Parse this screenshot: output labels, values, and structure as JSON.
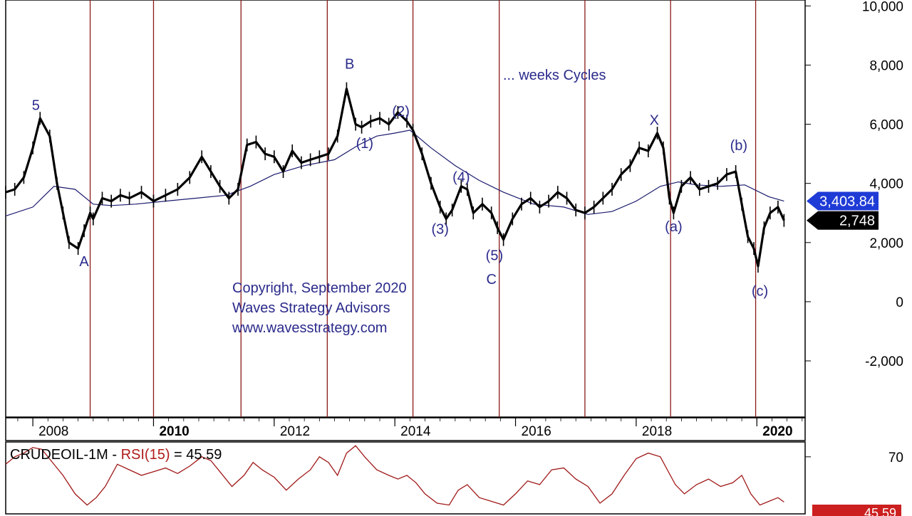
{
  "chart_data": {
    "type": "line",
    "annotation_cycles": "... weeks Cycles",
    "copyright_lines": [
      "Copyright, September 2020",
      "Waves Strategy Advisors",
      "www.wavesstrategy.com"
    ],
    "x_ticks": [
      {
        "label": "2008",
        "value": 2008.0,
        "bold": false
      },
      {
        "label": "2010",
        "value": 2010.0,
        "bold": true
      },
      {
        "label": "2012",
        "value": 2012.0,
        "bold": false
      },
      {
        "label": "2014",
        "value": 2014.0,
        "bold": false
      },
      {
        "label": "2016",
        "value": 2016.0,
        "bold": false
      },
      {
        "label": "2018",
        "value": 2018.0,
        "bold": false
      },
      {
        "label": "2020",
        "value": 2020.0,
        "bold": true
      }
    ],
    "xlim": [
      2007.55,
      2020.8
    ],
    "y_ticks": [
      {
        "label": "10,000",
        "value": 10000
      },
      {
        "label": "8,000",
        "value": 8000
      },
      {
        "label": "6,000",
        "value": 6000
      },
      {
        "label": "4,000",
        "value": 4000
      },
      {
        "label": "2,000",
        "value": 2000
      },
      {
        "label": "0",
        "value": 0
      },
      {
        "label": "-2,000",
        "value": -2000
      }
    ],
    "ylim": [
      -3900,
      10200
    ],
    "cycle_lines": [
      2008.95,
      2010.0,
      2011.45,
      2012.88,
      2014.3,
      2015.73,
      2017.15,
      2018.57,
      2019.98
    ],
    "series": [
      {
        "name": "price",
        "x": [
          2007.55,
          2007.7,
          2007.85,
          2008.0,
          2008.12,
          2008.28,
          2008.4,
          2008.5,
          2008.6,
          2008.75,
          2008.85,
          2008.95,
          2009.0,
          2009.15,
          2009.3,
          2009.45,
          2009.6,
          2009.8,
          2010.0,
          2010.2,
          2010.4,
          2010.6,
          2010.8,
          2010.95,
          2011.1,
          2011.25,
          2011.4,
          2011.55,
          2011.7,
          2011.85,
          2012.0,
          2012.15,
          2012.3,
          2012.45,
          2012.6,
          2012.75,
          2012.9,
          2013.05,
          2013.2,
          2013.35,
          2013.45,
          2013.6,
          2013.75,
          2013.9,
          2014.05,
          2014.2,
          2014.3,
          2014.45,
          2014.6,
          2014.75,
          2014.85,
          2014.95,
          2015.1,
          2015.2,
          2015.3,
          2015.45,
          2015.6,
          2015.7,
          2015.8,
          2015.95,
          2016.1,
          2016.25,
          2016.4,
          2016.55,
          2016.7,
          2016.85,
          2017.0,
          2017.15,
          2017.3,
          2017.45,
          2017.6,
          2017.75,
          2017.9,
          2018.05,
          2018.2,
          2018.35,
          2018.45,
          2018.55,
          2018.62,
          2018.75,
          2018.9,
          2019.05,
          2019.2,
          2019.35,
          2019.5,
          2019.65,
          2019.75,
          2019.85,
          2019.95,
          2020.02,
          2020.12,
          2020.22,
          2020.35,
          2020.45
        ],
        "values": [
          3700,
          3800,
          4200,
          5200,
          6200,
          5600,
          4000,
          3000,
          2000,
          1800,
          2400,
          3000,
          2800,
          3500,
          3400,
          3600,
          3500,
          3700,
          3400,
          3600,
          3800,
          4200,
          4900,
          4400,
          3900,
          3500,
          3800,
          5300,
          5400,
          5000,
          4900,
          4400,
          5100,
          4700,
          4800,
          4900,
          5000,
          5600,
          7200,
          6000,
          5900,
          6100,
          6200,
          6000,
          6400,
          6100,
          5800,
          5000,
          4000,
          3200,
          2800,
          3100,
          3900,
          3800,
          3000,
          3300,
          3000,
          2500,
          2100,
          2800,
          3300,
          3500,
          3200,
          3400,
          3700,
          3500,
          3100,
          3000,
          3200,
          3500,
          3800,
          4300,
          4600,
          5200,
          5100,
          5700,
          5200,
          3500,
          3000,
          3900,
          4200,
          3800,
          3900,
          4000,
          4300,
          4400,
          3300,
          2200,
          1800,
          1200,
          2500,
          3000,
          3200,
          2748
        ]
      },
      {
        "name": "moving average",
        "x": [
          2007.55,
          2008.0,
          2008.35,
          2008.7,
          2009.0,
          2009.3,
          2009.7,
          2010.2,
          2010.7,
          2011.2,
          2011.6,
          2012.0,
          2012.5,
          2013.0,
          2013.4,
          2013.7,
          2014.0,
          2014.25,
          2014.6,
          2015.0,
          2015.4,
          2015.8,
          2016.3,
          2016.8,
          2017.2,
          2017.6,
          2018.0,
          2018.4,
          2018.7,
          2019.0,
          2019.4,
          2019.8,
          2020.2,
          2020.45
        ],
        "values": [
          2900,
          3200,
          3900,
          3800,
          3300,
          3250,
          3300,
          3400,
          3500,
          3600,
          3900,
          4300,
          4600,
          4800,
          5300,
          5600,
          5700,
          5800,
          5200,
          4600,
          4100,
          3700,
          3300,
          3200,
          2950,
          3050,
          3400,
          3900,
          4050,
          3950,
          3900,
          3950,
          3550,
          3400
        ]
      }
    ],
    "wave_labels": [
      {
        "label": "5",
        "x": 2008.05,
        "y": 6480
      },
      {
        "label": "A",
        "x": 2008.85,
        "y": 1200
      },
      {
        "label": "B",
        "x": 2013.25,
        "y": 7880
      },
      {
        "label": "(1)",
        "x": 2013.5,
        "y": 5200
      },
      {
        "label": "(2)",
        "x": 2014.1,
        "y": 6280
      },
      {
        "label": "(3)",
        "x": 2014.75,
        "y": 2300
      },
      {
        "label": "(4)",
        "x": 2015.1,
        "y": 4050
      },
      {
        "label": "(5)",
        "x": 2015.65,
        "y": 1400
      },
      {
        "label": "C",
        "x": 2015.6,
        "y": 600
      },
      {
        "label": "X",
        "x": 2018.3,
        "y": 5980
      },
      {
        "label": "(b)",
        "x": 2019.7,
        "y": 5120
      },
      {
        "label": "(a)",
        "x": 2018.62,
        "y": 2380
      },
      {
        "label": "(c)",
        "x": 2020.05,
        "y": 200
      }
    ],
    "price_tags": [
      {
        "label": "3,403.84",
        "value": 3403.84,
        "color": "#1f3bd6"
      },
      {
        "label": "2,748",
        "value": 2748,
        "color": "#000000"
      }
    ],
    "rsi": {
      "label_prefix": "CRUDEOIL-1M - ",
      "label_name": "RSI(15)",
      "label_value": " = 45.59",
      "ylim": [
        40,
        78
      ],
      "y_ticks": [
        {
          "label": "70",
          "value": 70
        }
      ],
      "value_tag": "45.59",
      "x": [
        2007.55,
        2007.7,
        2007.85,
        2008.0,
        2008.15,
        2008.3,
        2008.5,
        2008.7,
        2008.9,
        2009.05,
        2009.2,
        2009.4,
        2009.6,
        2009.8,
        2010.0,
        2010.2,
        2010.4,
        2010.6,
        2010.8,
        2010.95,
        2011.1,
        2011.3,
        2011.5,
        2011.65,
        2011.8,
        2012.0,
        2012.2,
        2012.4,
        2012.6,
        2012.75,
        2012.9,
        2013.05,
        2013.2,
        2013.35,
        2013.5,
        2013.7,
        2013.9,
        2014.05,
        2014.2,
        2014.35,
        2014.5,
        2014.7,
        2014.9,
        2015.05,
        2015.2,
        2015.4,
        2015.6,
        2015.8,
        2016.0,
        2016.2,
        2016.4,
        2016.6,
        2016.8,
        2017.0,
        2017.2,
        2017.4,
        2017.6,
        2017.8,
        2018.0,
        2018.2,
        2018.4,
        2018.5,
        2018.65,
        2018.8,
        2019.0,
        2019.2,
        2019.4,
        2019.6,
        2019.75,
        2019.9,
        2020.05,
        2020.2,
        2020.35,
        2020.45
      ],
      "values": [
        66,
        70,
        72,
        75,
        74,
        68,
        60,
        50,
        44,
        48,
        54,
        66,
        63,
        60,
        62,
        64,
        61,
        65,
        70,
        68,
        62,
        54,
        60,
        67,
        63,
        59,
        52,
        58,
        63,
        70,
        67,
        60,
        72,
        76,
        70,
        63,
        60,
        58,
        60,
        56,
        50,
        45,
        44,
        52,
        55,
        48,
        46,
        44,
        50,
        57,
        55,
        63,
        64,
        58,
        54,
        45,
        50,
        60,
        69,
        72,
        70,
        64,
        55,
        50,
        55,
        58,
        54,
        56,
        60,
        50,
        44,
        46,
        48,
        45.59
      ]
    }
  }
}
